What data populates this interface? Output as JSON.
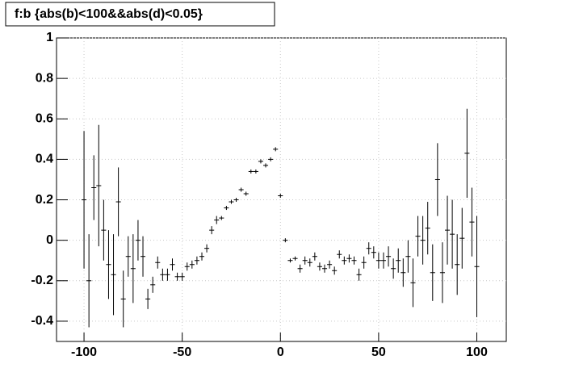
{
  "chart_data": {
    "type": "errorbar",
    "title": "f:b {abs(b)<100&&abs(d)<0.05}",
    "x": [
      -100,
      -97.5,
      -95,
      -92.5,
      -90,
      -87.5,
      -85,
      -82.5,
      -80,
      -77.5,
      -75,
      -72.5,
      -70,
      -67.5,
      -65,
      -62.5,
      -60,
      -57.5,
      -55,
      -52.5,
      -50,
      -47.5,
      -45,
      -42.5,
      -40,
      -37.5,
      -35,
      -32.5,
      -30,
      -27.5,
      -25,
      -22.5,
      -20,
      -17.5,
      -15,
      -12.5,
      -10,
      -7.5,
      -5,
      -2.5,
      0,
      2.5,
      5,
      7.5,
      10,
      12.5,
      15,
      17.5,
      20,
      22.5,
      25,
      27.5,
      30,
      32.5,
      35,
      37.5,
      40,
      42.5,
      45,
      47.5,
      50,
      52.5,
      55,
      57.5,
      60,
      62.5,
      65,
      67.5,
      70,
      72.5,
      75,
      77.5,
      80,
      82.5,
      85,
      87.5,
      90,
      92.5,
      95,
      97.5,
      100
    ],
    "values": [
      0.2,
      -0.2,
      0.26,
      0.27,
      0.05,
      -0.12,
      -0.17,
      0.19,
      -0.29,
      -0.08,
      -0.14,
      0,
      -0.08,
      -0.29,
      -0.22,
      -0.11,
      -0.17,
      -0.17,
      -0.12,
      -0.18,
      -0.18,
      -0.13,
      -0.12,
      -0.1,
      -0.08,
      -0.04,
      0.05,
      0.1,
      0.11,
      0.16,
      0.19,
      0.2,
      0.25,
      0.23,
      0.34,
      0.34,
      0.39,
      0.37,
      0.4,
      0.45,
      0.22,
      0,
      -0.1,
      -0.09,
      -0.14,
      -0.1,
      -0.11,
      -0.08,
      -0.13,
      -0.14,
      -0.12,
      -0.15,
      -0.07,
      -0.1,
      -0.09,
      -0.1,
      -0.17,
      -0.11,
      -0.04,
      -0.06,
      -0.1,
      -0.1,
      -0.08,
      -0.14,
      -0.1,
      -0.16,
      -0.08,
      -0.21,
      0.02,
      0,
      0.06,
      -0.16,
      0.3,
      -0.16,
      0.05,
      0.03,
      -0.12,
      0.01,
      0.43,
      0.09,
      -0.13
    ],
    "errors": [
      0.34,
      0.23,
      0.16,
      0.3,
      0.15,
      0.17,
      0.2,
      0.17,
      0.14,
      0.1,
      0.17,
      0.1,
      0.1,
      0.05,
      0.04,
      0.03,
      0.03,
      0.03,
      0.03,
      0.02,
      0.02,
      0.02,
      0.02,
      0.02,
      0.02,
      0.02,
      0.02,
      0.02,
      0.01,
      0.01,
      0.01,
      0.01,
      0.01,
      0.01,
      0.01,
      0.01,
      0.01,
      0.01,
      0.01,
      0.01,
      0.01,
      0.01,
      0.01,
      0.01,
      0.02,
      0.02,
      0.02,
      0.02,
      0.02,
      0.02,
      0.02,
      0.02,
      0.02,
      0.02,
      0.02,
      0.02,
      0.03,
      0.03,
      0.03,
      0.03,
      0.04,
      0.04,
      0.05,
      0.05,
      0.06,
      0.07,
      0.08,
      0.12,
      0.1,
      0.12,
      0.13,
      0.14,
      0.18,
      0.15,
      0.17,
      0.17,
      0.15,
      0.15,
      0.22,
      0.17,
      0.25
    ],
    "color": "#000000",
    "xlim": [
      -114,
      115
    ],
    "ylim": [
      -0.5,
      1
    ],
    "xticks": [
      -100,
      -50,
      0,
      50,
      100
    ],
    "yticks": [
      -0.4,
      -0.2,
      0,
      0.2,
      0.4,
      0.6,
      0.8,
      1
    ],
    "grid": true
  }
}
